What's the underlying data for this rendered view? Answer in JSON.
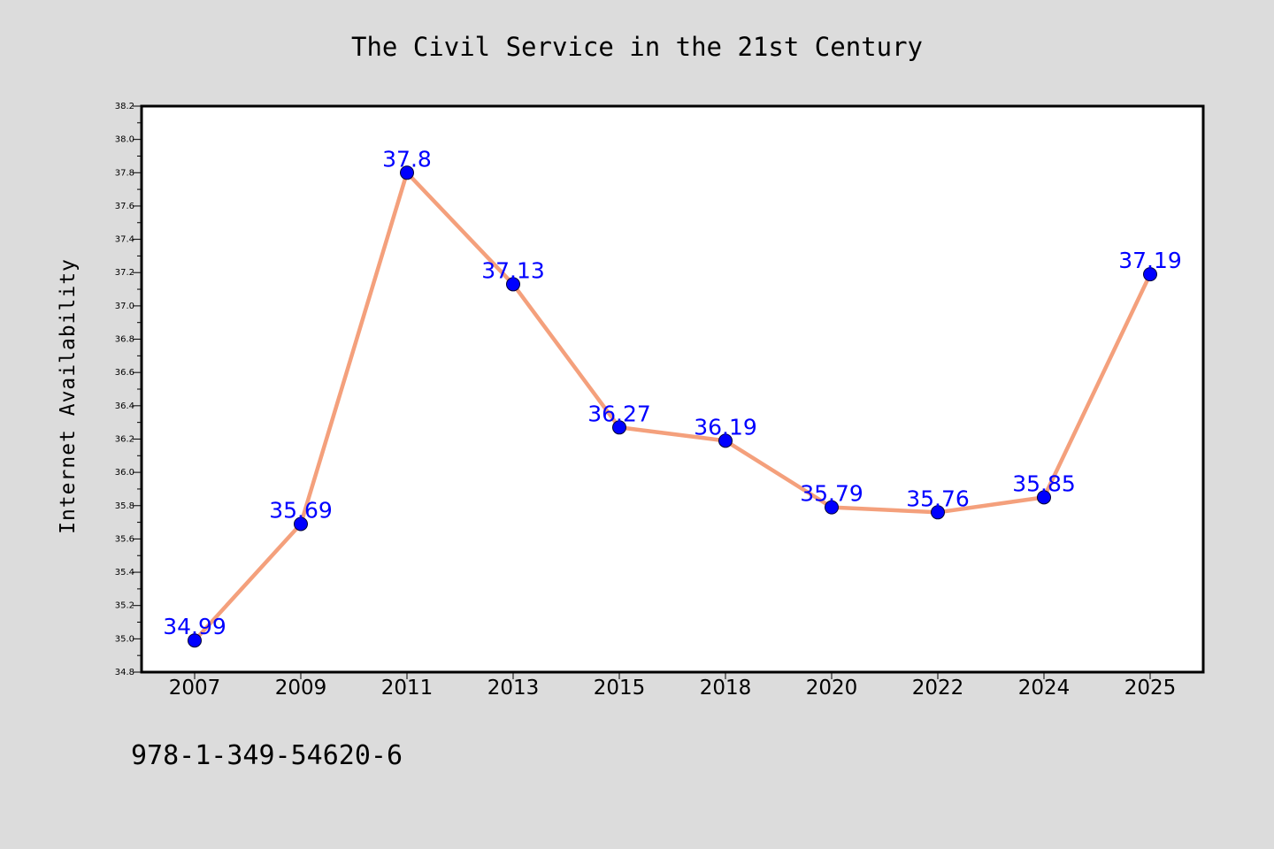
{
  "page": {
    "footer_code": "978-1-349-54620-6",
    "background": "#dcdcdc"
  },
  "chart_data": {
    "type": "line",
    "title": "The Civil Service in the 21st Century",
    "xlabel": "",
    "ylabel": "Internet Availability",
    "categories": [
      "2007",
      "2009",
      "2011",
      "2013",
      "2015",
      "2018",
      "2020",
      "2022",
      "2024",
      "2025"
    ],
    "series": [
      {
        "values": [
          34.99,
          35.69,
          37.8,
          37.13,
          36.27,
          36.19,
          35.79,
          35.76,
          35.85,
          37.19
        ],
        "labels": [
          "34.99",
          "35.69",
          "37.8",
          "37.13",
          "36.27",
          "36.19",
          "35.79",
          "35.76",
          "35.85",
          "37.19"
        ],
        "line_color": "#f4a07c",
        "marker_color": "#0000ff"
      }
    ],
    "ylim": [
      34.8,
      38.2
    ],
    "yticks": [
      "34.8",
      "35.0",
      "35.2",
      "35.4",
      "35.6",
      "35.8",
      "36.0",
      "36.2",
      "36.4",
      "36.6",
      "36.8",
      "37.0",
      "37.2",
      "37.4",
      "37.6",
      "37.8",
      "38.0",
      "38.2"
    ],
    "grid": false,
    "legend": "none",
    "plot_background": "#ffffff"
  }
}
